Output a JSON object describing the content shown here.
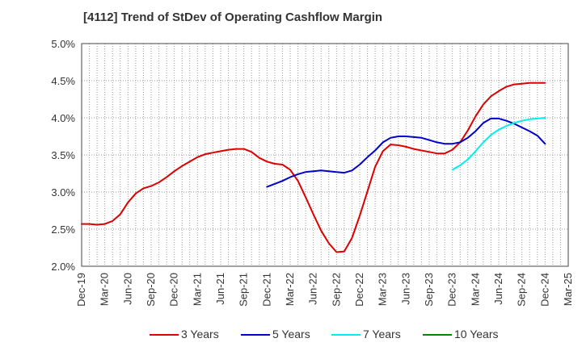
{
  "chart_data": {
    "type": "line",
    "title": "[4112]  Trend of StDev of Operating Cashflow Margin",
    "xlabel": "",
    "ylabel": "",
    "ylim": [
      2.0,
      5.0
    ],
    "y_ticks": [
      "2.0%",
      "2.5%",
      "3.0%",
      "3.5%",
      "4.0%",
      "4.5%",
      "5.0%"
    ],
    "y_tick_values": [
      2.0,
      2.5,
      3.0,
      3.5,
      4.0,
      4.5,
      5.0
    ],
    "x_ticks": [
      "Dec-19",
      "Mar-20",
      "Jun-20",
      "Sep-20",
      "Dec-20",
      "Mar-21",
      "Jun-21",
      "Sep-21",
      "Dec-21",
      "Mar-22",
      "Jun-22",
      "Sep-22",
      "Dec-22",
      "Mar-23",
      "Jun-23",
      "Sep-23",
      "Dec-23",
      "Mar-24",
      "Jun-24",
      "Sep-24",
      "Dec-24",
      "Mar-25"
    ],
    "grid": true,
    "legend_position": "bottom",
    "series": [
      {
        "name": "3 Years",
        "color": "#dd0000",
        "x": [
          "Dec-19",
          "Jan-20",
          "Feb-20",
          "Mar-20",
          "Apr-20",
          "May-20",
          "Jun-20",
          "Jul-20",
          "Aug-20",
          "Sep-20",
          "Oct-20",
          "Nov-20",
          "Dec-20",
          "Jan-21",
          "Feb-21",
          "Mar-21",
          "Apr-21",
          "May-21",
          "Jun-21",
          "Jul-21",
          "Aug-21",
          "Sep-21",
          "Oct-21",
          "Nov-21",
          "Dec-21",
          "Jan-22",
          "Feb-22",
          "Mar-22",
          "Apr-22",
          "May-22",
          "Jun-22",
          "Jul-22",
          "Aug-22",
          "Sep-22",
          "Oct-22",
          "Nov-22",
          "Dec-22",
          "Jan-23",
          "Feb-23",
          "Mar-23",
          "Apr-23",
          "May-23",
          "Jun-23",
          "Jul-23",
          "Aug-23",
          "Sep-23",
          "Oct-23",
          "Nov-23",
          "Dec-23",
          "Jan-24",
          "Feb-24",
          "Mar-24",
          "Apr-24",
          "May-24",
          "Jun-24",
          "Jul-24",
          "Aug-24",
          "Sep-24",
          "Oct-24",
          "Nov-24",
          "Dec-24"
        ],
        "values": [
          2.57,
          2.57,
          2.56,
          2.57,
          2.61,
          2.7,
          2.86,
          2.98,
          3.05,
          3.08,
          3.13,
          3.2,
          3.28,
          3.35,
          3.41,
          3.47,
          3.51,
          3.53,
          3.55,
          3.57,
          3.58,
          3.58,
          3.54,
          3.46,
          3.41,
          3.38,
          3.37,
          3.3,
          3.15,
          2.93,
          2.7,
          2.48,
          2.31,
          2.19,
          2.2,
          2.38,
          2.68,
          3.01,
          3.34,
          3.55,
          3.64,
          3.63,
          3.61,
          3.58,
          3.56,
          3.54,
          3.52,
          3.52,
          3.57,
          3.67,
          3.83,
          4.02,
          4.18,
          4.29,
          4.36,
          4.42,
          4.45,
          4.46,
          4.47,
          4.47,
          4.47
        ]
      },
      {
        "name": "5 Years",
        "color": "#0000cc",
        "x": [
          "Dec-21",
          "Jan-22",
          "Feb-22",
          "Mar-22",
          "Apr-22",
          "May-22",
          "Jun-22",
          "Jul-22",
          "Aug-22",
          "Sep-22",
          "Oct-22",
          "Nov-22",
          "Dec-22",
          "Jan-23",
          "Feb-23",
          "Mar-23",
          "Apr-23",
          "May-23",
          "Jun-23",
          "Jul-23",
          "Aug-23",
          "Sep-23",
          "Oct-23",
          "Nov-23",
          "Dec-23",
          "Jan-24",
          "Feb-24",
          "Mar-24",
          "Apr-24",
          "May-24",
          "Jun-24",
          "Jul-24",
          "Aug-24",
          "Sep-24",
          "Oct-24",
          "Nov-24",
          "Dec-24"
        ],
        "values": [
          3.07,
          3.11,
          3.15,
          3.2,
          3.24,
          3.27,
          3.28,
          3.29,
          3.28,
          3.27,
          3.26,
          3.29,
          3.37,
          3.47,
          3.56,
          3.67,
          3.73,
          3.75,
          3.75,
          3.74,
          3.73,
          3.7,
          3.67,
          3.65,
          3.65,
          3.67,
          3.73,
          3.82,
          3.93,
          3.99,
          3.99,
          3.96,
          3.92,
          3.87,
          3.82,
          3.76,
          3.65
        ]
      },
      {
        "name": "7 Years",
        "color": "#00eeee",
        "x": [
          "Dec-23",
          "Jan-24",
          "Feb-24",
          "Mar-24",
          "Apr-24",
          "May-24",
          "Jun-24",
          "Jul-24",
          "Aug-24",
          "Sep-24",
          "Oct-24",
          "Nov-24",
          "Dec-24"
        ],
        "values": [
          3.3,
          3.36,
          3.44,
          3.55,
          3.67,
          3.77,
          3.84,
          3.89,
          3.93,
          3.96,
          3.98,
          3.99,
          4.0
        ]
      },
      {
        "name": "10 Years",
        "color": "#008800",
        "x": [],
        "values": []
      }
    ]
  }
}
